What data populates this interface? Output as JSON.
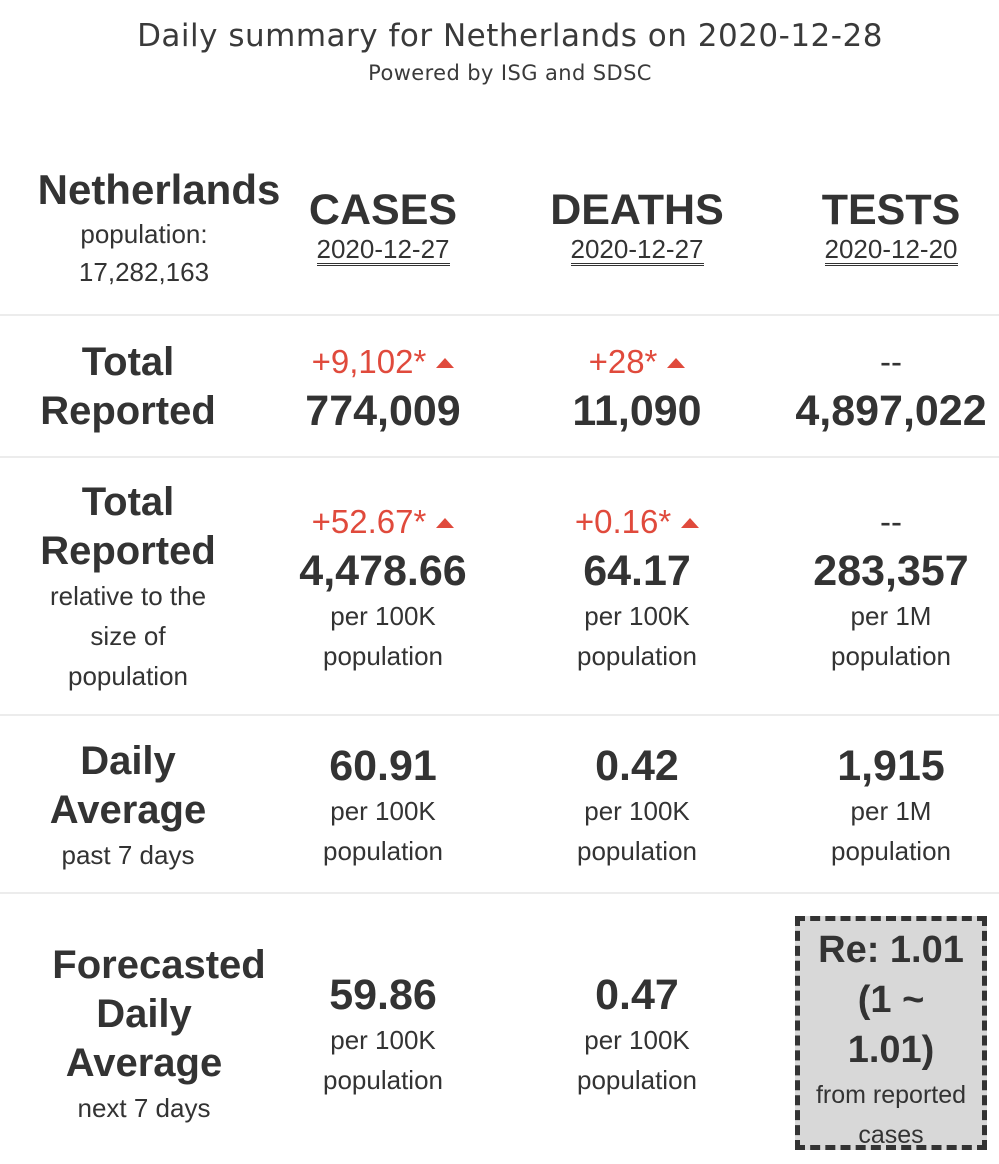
{
  "header": {
    "title": "Daily summary for Netherlands on 2020-12-28",
    "subtitle": "Powered by ISG and SDSC"
  },
  "country": {
    "name": "Netherlands",
    "population_label": "population:",
    "population": "17,282,163"
  },
  "columns": {
    "cases": {
      "label": "CASES",
      "date": "2020-12-27"
    },
    "deaths": {
      "label": "DEATHS",
      "date": "2020-12-27"
    },
    "tests": {
      "label": "TESTS",
      "date": "2020-12-20"
    }
  },
  "rows": {
    "total": {
      "label_line1": "Total",
      "label_line2": "Reported",
      "cases": {
        "change": "+9,102*",
        "value": "774,009"
      },
      "deaths": {
        "change": "+28*",
        "value": "11,090"
      },
      "tests": {
        "change": "--",
        "value": "4,897,022"
      }
    },
    "relative": {
      "label_line1": "Total",
      "label_line2": "Reported",
      "sub1": "relative to the",
      "sub2": "size of",
      "sub3": "population",
      "cases": {
        "change": "+52.67*",
        "value": "4,478.66",
        "unit1": "per 100K",
        "unit2": "population"
      },
      "deaths": {
        "change": "+0.16*",
        "value": "64.17",
        "unit1": "per 100K",
        "unit2": "population"
      },
      "tests": {
        "change": "--",
        "value": "283,357",
        "unit1": "per 1M",
        "unit2": "population"
      }
    },
    "daily": {
      "label_line1": "Daily",
      "label_line2": "Average",
      "sub1": "past 7 days",
      "cases": {
        "value": "60.91",
        "unit1": "per 100K",
        "unit2": "population"
      },
      "deaths": {
        "value": "0.42",
        "unit1": "per 100K",
        "unit2": "population"
      },
      "tests": {
        "value": "1,915",
        "unit1": "per 1M",
        "unit2": "population"
      }
    },
    "forecast": {
      "label_line1": "Forecasted",
      "label_line2": "Daily",
      "label_line3": "Average",
      "sub1": "next 7 days",
      "cases": {
        "value": "59.86",
        "unit1": "per 100K",
        "unit2": "population"
      },
      "deaths": {
        "value": "0.47",
        "unit1": "per 100K",
        "unit2": "population"
      },
      "re": {
        "line1": "Re: 1.01",
        "line2": "(1 ~",
        "line3": "1.01)",
        "note1": "from reported",
        "note2": "cases"
      }
    }
  },
  "colors": {
    "increase": "#e04a3c",
    "text": "#333333",
    "divider": "#ececec",
    "re_box_bg": "#d8d8d8"
  },
  "icons": {
    "increase": "triangle-up-icon"
  }
}
